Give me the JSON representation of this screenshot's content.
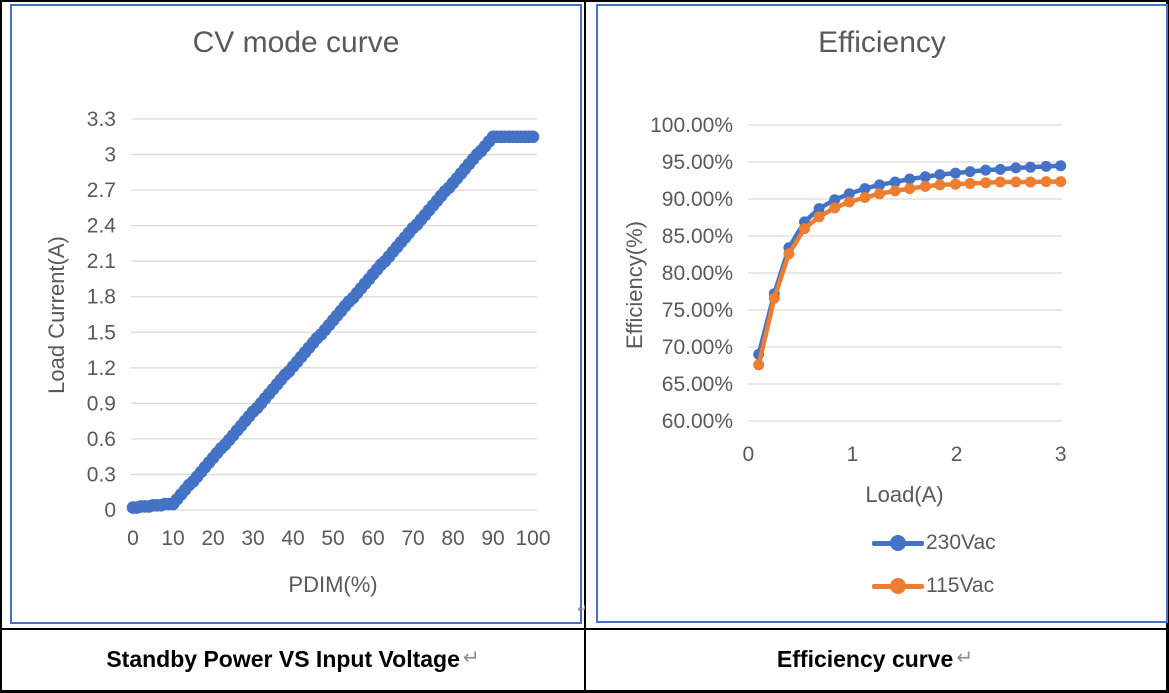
{
  "page": {
    "background": "#ffffff",
    "table_border_color": "#000000",
    "chart_frame_color": "#4472C4",
    "gridline_color": "#D9D9D9",
    "axis_text_color": "#595959",
    "return_mark": "↵"
  },
  "left_panel": {
    "chart": {
      "title": "CV mode curve",
      "x_axis_title": "PDIM(%)",
      "y_axis_title": "Load Current(A)"
    },
    "caption": "Standby Power VS Input Voltage"
  },
  "right_panel": {
    "chart": {
      "title": "Efficiency",
      "x_axis_title": "Load(A)",
      "y_axis_title": "Efficiency(%)"
    },
    "legend": [
      {
        "label": "230Vac",
        "color": "#4472C4"
      },
      {
        "label": "115Vac",
        "color": "#ED7D31"
      }
    ],
    "caption": "Efficiency curve"
  },
  "chart_data": [
    {
      "type": "line",
      "title": "CV mode curve",
      "xlabel": "PDIM(%)",
      "ylabel": "Load Current(A)",
      "xlim": [
        0,
        100
      ],
      "ylim": [
        0,
        3.3
      ],
      "grid": true,
      "legend_position": "none",
      "x_ticks": [
        0,
        10,
        20,
        30,
        40,
        50,
        60,
        70,
        80,
        90,
        100
      ],
      "y_tick_values": [
        3.3,
        3,
        2.7,
        2.4,
        2.1,
        1.8,
        1.5,
        1.2,
        0.9,
        0.6,
        0.3,
        0
      ],
      "y_tick_labels": [
        "3.3",
        "3",
        "2.7",
        "2.4",
        "2.1",
        "1.8",
        "1.5",
        "1.2",
        "0.9",
        "0.6",
        "0.3",
        "0"
      ],
      "series": [
        {
          "name": "Load Current",
          "color": "#4472C4",
          "x": [
            0,
            1,
            2,
            3,
            4,
            5,
            6,
            7,
            8,
            9,
            10,
            11,
            12,
            13,
            14,
            15,
            16,
            17,
            18,
            19,
            20,
            21,
            22,
            23,
            24,
            25,
            26,
            27,
            28,
            29,
            30,
            31,
            32,
            33,
            34,
            35,
            36,
            37,
            38,
            39,
            40,
            41,
            42,
            43,
            44,
            45,
            46,
            47,
            48,
            49,
            50,
            51,
            52,
            53,
            54,
            55,
            56,
            57,
            58,
            59,
            60,
            61,
            62,
            63,
            64,
            65,
            66,
            67,
            68,
            69,
            70,
            71,
            72,
            73,
            74,
            75,
            76,
            77,
            78,
            79,
            80,
            81,
            82,
            83,
            84,
            85,
            86,
            87,
            88,
            89,
            90,
            91,
            92,
            93,
            94,
            95,
            96,
            97,
            98,
            99,
            100
          ],
          "y": [
            0.02,
            0.02,
            0.03,
            0.03,
            0.03,
            0.04,
            0.04,
            0.04,
            0.05,
            0.05,
            0.05,
            0.09,
            0.13,
            0.17,
            0.21,
            0.24,
            0.28,
            0.32,
            0.36,
            0.4,
            0.44,
            0.48,
            0.52,
            0.55,
            0.59,
            0.63,
            0.67,
            0.71,
            0.75,
            0.79,
            0.83,
            0.86,
            0.9,
            0.94,
            0.98,
            1.02,
            1.06,
            1.1,
            1.14,
            1.17,
            1.21,
            1.25,
            1.29,
            1.33,
            1.37,
            1.41,
            1.45,
            1.48,
            1.52,
            1.56,
            1.6,
            1.64,
            1.68,
            1.72,
            1.76,
            1.79,
            1.83,
            1.87,
            1.91,
            1.95,
            1.99,
            2.03,
            2.07,
            2.1,
            2.14,
            2.18,
            2.22,
            2.26,
            2.3,
            2.34,
            2.38,
            2.41,
            2.45,
            2.49,
            2.53,
            2.57,
            2.61,
            2.65,
            2.69,
            2.72,
            2.76,
            2.8,
            2.84,
            2.88,
            2.92,
            2.96,
            3.0,
            3.03,
            3.07,
            3.11,
            3.15,
            3.15,
            3.15,
            3.15,
            3.15,
            3.15,
            3.15,
            3.15,
            3.15,
            3.15,
            3.15
          ]
        }
      ]
    },
    {
      "type": "line",
      "title": "Efficiency",
      "xlabel": "Load(A)",
      "ylabel": "Efficiency(%)",
      "xlim": [
        0,
        3
      ],
      "ylim": [
        60,
        100
      ],
      "grid": true,
      "legend_position": "bottom",
      "x_ticks": [
        0,
        1,
        2,
        3
      ],
      "y_tick_values": [
        100,
        95,
        90,
        85,
        80,
        75,
        70,
        65,
        60
      ],
      "y_tick_labels": [
        "100.00%",
        "95.00%",
        "90.00%",
        "85.00%",
        "80.00%",
        "75.00%",
        "70.00%",
        "65.00%",
        "60.00%"
      ],
      "series": [
        {
          "name": "230Vac",
          "color": "#4472C4",
          "x": [
            0.1,
            0.25,
            0.39,
            0.54,
            0.68,
            0.83,
            0.97,
            1.12,
            1.26,
            1.41,
            1.55,
            1.7,
            1.84,
            1.99,
            2.13,
            2.28,
            2.42,
            2.57,
            2.71,
            2.86,
            3.0
          ],
          "y": [
            69.0,
            77.2,
            83.4,
            86.9,
            88.7,
            89.9,
            90.7,
            91.4,
            91.9,
            92.3,
            92.7,
            93.0,
            93.3,
            93.5,
            93.7,
            93.9,
            94.0,
            94.2,
            94.3,
            94.4,
            94.5
          ]
        },
        {
          "name": "115Vac",
          "color": "#ED7D31",
          "x": [
            0.1,
            0.25,
            0.39,
            0.54,
            0.68,
            0.83,
            0.97,
            1.12,
            1.26,
            1.41,
            1.55,
            1.7,
            1.84,
            1.99,
            2.13,
            2.28,
            2.42,
            2.57,
            2.71,
            2.86,
            3.0
          ],
          "y": [
            67.6,
            76.6,
            82.6,
            86.0,
            87.6,
            88.8,
            89.6,
            90.2,
            90.7,
            91.1,
            91.4,
            91.7,
            91.9,
            92.0,
            92.1,
            92.2,
            92.3,
            92.3,
            92.3,
            92.35,
            92.35
          ]
        }
      ]
    }
  ]
}
